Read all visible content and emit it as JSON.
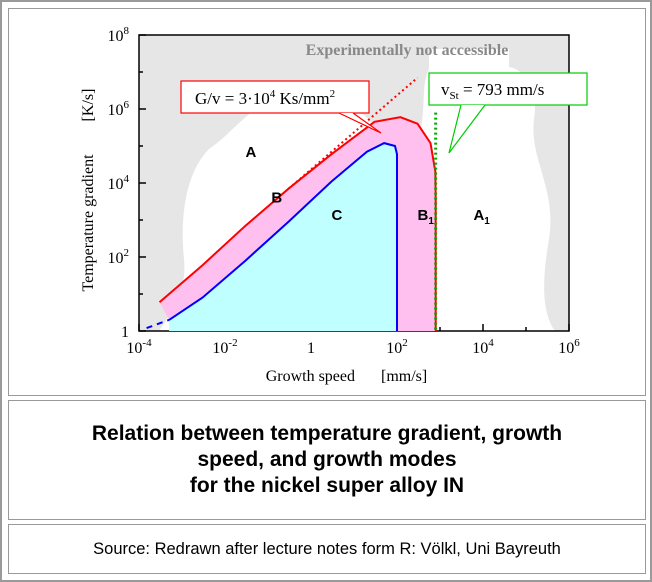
{
  "caption": {
    "line1": "Relation  between  temperature  gradient,  growth",
    "line2": "speed, and growth modes",
    "line3": "for the nickel super alloy IN"
  },
  "source": "Source: Redrawn after lecture notes form R: Völkl, Uni Bayreuth",
  "chart_data": {
    "type": "area",
    "xlabel": "Growth speed",
    "xunit": "[mm/s]",
    "ylabel": "Temperature gradient",
    "yunit": "[K/s]",
    "xscale": "log",
    "yscale": "log",
    "xlim": [
      0.0001,
      1000000
    ],
    "ylim": [
      1,
      100000000
    ],
    "x_ticks": [
      "10",
      "10",
      "1",
      "10",
      "10",
      "10"
    ],
    "x_tick_exponents": [
      "-4",
      "-2",
      "",
      "2",
      "4",
      "6"
    ],
    "y_ticks": [
      "1",
      "10",
      "10",
      "10",
      "10"
    ],
    "y_tick_exponents": [
      "",
      "2",
      "4",
      "6",
      "8"
    ],
    "inaccessible_label": "Experimentally not accessible",
    "annotation_gv": {
      "text": "G/v = 3·10",
      "exp": "4",
      "text2": " Ks/mm",
      "exp2": "2",
      "slope_ratio": 30000
    },
    "annotation_vst": {
      "text": "v",
      "sub": "St",
      "text2": " = 793 mm/s",
      "value": 793
    },
    "regions": [
      {
        "label": "A",
        "sub": "",
        "x": 0.03,
        "y": 50000
      },
      {
        "label": "B",
        "sub": "",
        "x": 0.12,
        "y": 3000
      },
      {
        "label": "C",
        "sub": "",
        "x": 3,
        "y": 1000
      },
      {
        "label": "B",
        "sub": "1",
        "x": 300,
        "y": 1000
      },
      {
        "label": "A",
        "sub": "1",
        "x": 6000,
        "y": 1000
      }
    ],
    "series": [
      {
        "name": "",
        "color": "#ff0000",
        "points": [
          [
            0.0003,
            6
          ],
          [
            0.003,
            60
          ],
          [
            0.03,
            700
          ],
          [
            0.3,
            7000
          ],
          [
            3,
            60000
          ],
          [
            30,
            450000
          ],
          [
            120,
            600000
          ],
          [
            300,
            400000
          ],
          [
            600,
            120000
          ],
          [
            780,
            20000
          ],
          [
            793,
            3000
          ],
          [
            793,
            1
          ]
        ]
      },
      {
        "name": "",
        "color": "#0000ff",
        "points": [
          [
            0.00015,
            1.2
          ],
          [
            0.0005,
            2
          ],
          [
            0.003,
            8
          ],
          [
            0.03,
            80
          ],
          [
            0.3,
            900
          ],
          [
            3,
            11000
          ],
          [
            20,
            70000
          ],
          [
            50,
            120000
          ],
          [
            90,
            100000
          ],
          [
            100,
            60000
          ],
          [
            100,
            1
          ]
        ]
      }
    ],
    "colors": {
      "region_B": "#ffc0f0",
      "region_C": "#c0ffff",
      "inaccessible": "#e6e6e6",
      "gv_line": "#ff0000",
      "vst_line": "#00aa00",
      "gv_box": "#ff0000",
      "vst_box": "#00cc00"
    }
  }
}
